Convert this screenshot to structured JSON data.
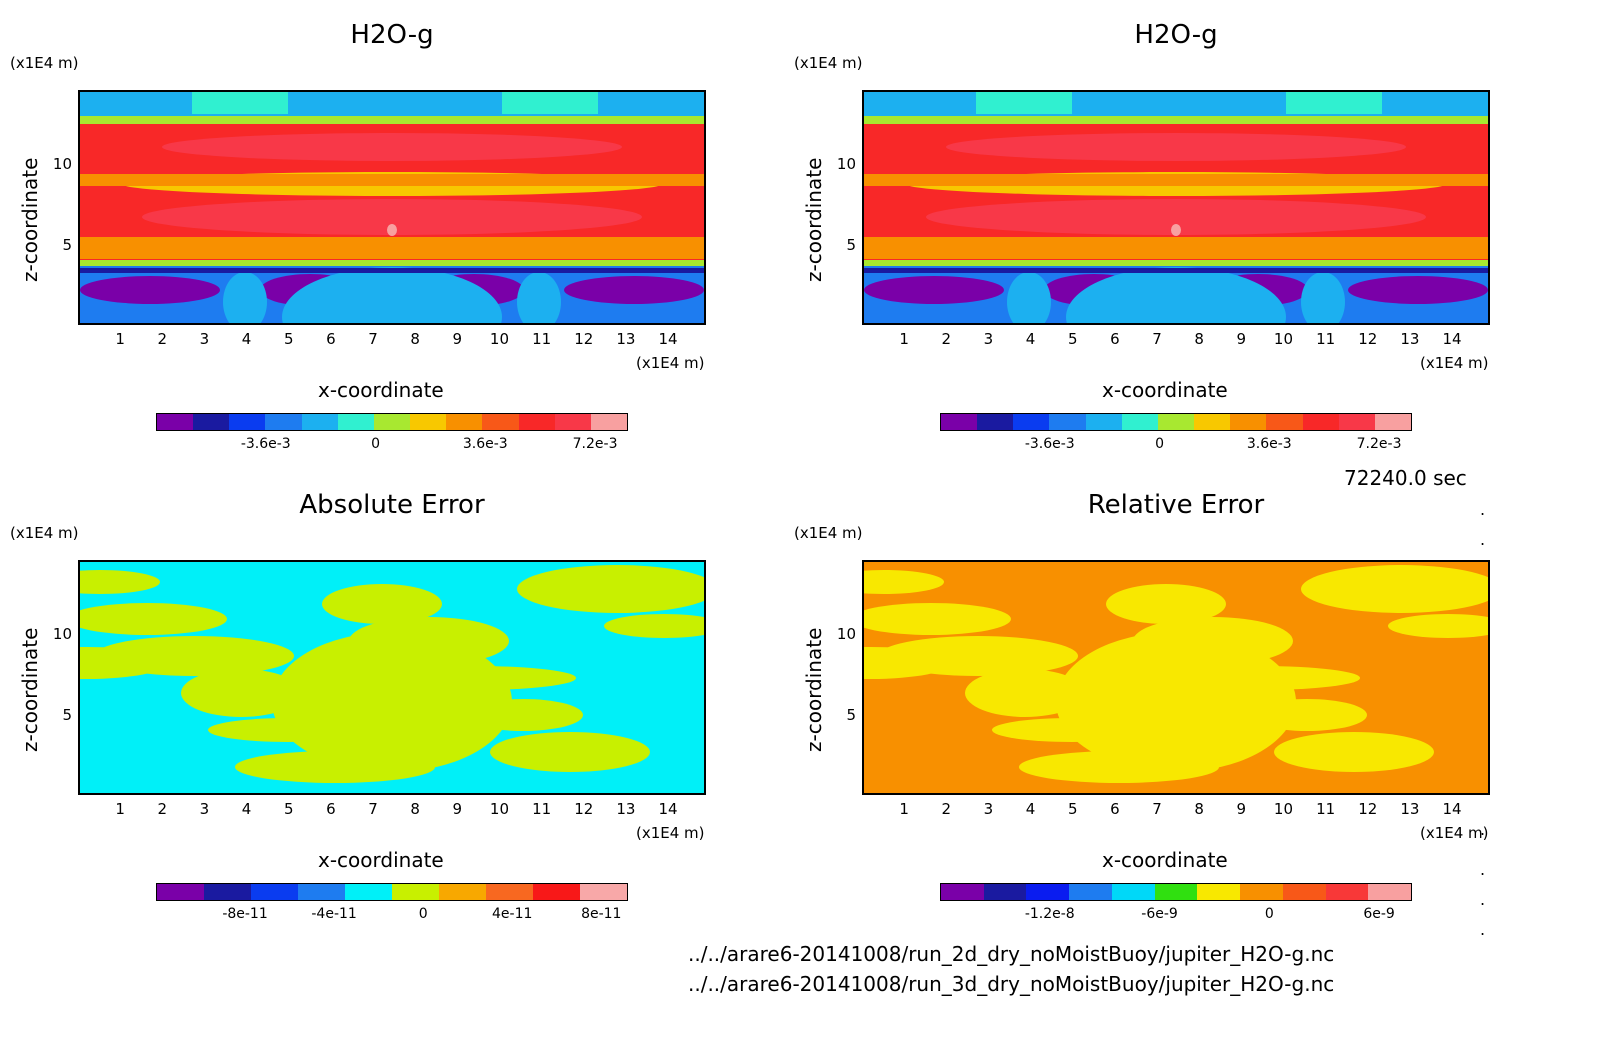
{
  "chart_data": [
    {
      "type": "heatmap",
      "title": "H2O-g",
      "xlabel": "x-coordinate",
      "ylabel": "z-coordinate",
      "x_unit": "(x1E4 m)",
      "y_unit": "(x1E4 m)",
      "xticks": [
        "1",
        "2",
        "3",
        "4",
        "5",
        "6",
        "7",
        "8",
        "9",
        "10",
        "11",
        "12",
        "13",
        "14"
      ],
      "yticks": [
        "5",
        "10"
      ],
      "colorbar": {
        "colors": [
          "#7a00a8",
          "#1a1aa0",
          "#0a3cf0",
          "#1e7cf0",
          "#1cb0f0",
          "#30f0d0",
          "#a8e830",
          "#f8c800",
          "#f89000",
          "#f85818",
          "#f82828",
          "#f83848",
          "#f8a0a0"
        ],
        "labels": [
          "-3.6e-3",
          "0",
          "3.6e-3",
          "7.2e-3"
        ]
      }
    },
    {
      "type": "heatmap",
      "title": "H2O-g",
      "xlabel": "x-coordinate",
      "ylabel": "z-coordinate",
      "x_unit": "(x1E4 m)",
      "y_unit": "(x1E4 m)",
      "xticks": [
        "1",
        "2",
        "3",
        "4",
        "5",
        "6",
        "7",
        "8",
        "9",
        "10",
        "11",
        "12",
        "13",
        "14"
      ],
      "yticks": [
        "5",
        "10"
      ],
      "colorbar": {
        "colors": [
          "#7a00a8",
          "#1a1aa0",
          "#0a3cf0",
          "#1e7cf0",
          "#1cb0f0",
          "#30f0d0",
          "#a8e830",
          "#f8c800",
          "#f89000",
          "#f85818",
          "#f82828",
          "#f83848",
          "#f8a0a0"
        ],
        "labels": [
          "-3.6e-3",
          "0",
          "3.6e-3",
          "7.2e-3"
        ]
      }
    },
    {
      "type": "heatmap",
      "title": "Absolute Error",
      "xlabel": "x-coordinate",
      "ylabel": "z-coordinate",
      "x_unit": "(x1E4 m)",
      "y_unit": "(x1E4 m)",
      "xticks": [
        "1",
        "2",
        "3",
        "4",
        "5",
        "6",
        "7",
        "8",
        "9",
        "10",
        "11",
        "12",
        "13",
        "14"
      ],
      "yticks": [
        "5",
        "10"
      ],
      "colorbar": {
        "colors": [
          "#7a00a8",
          "#1a1aa0",
          "#0a3cf0",
          "#1e7cf0",
          "#00f0f8",
          "#c8f000",
          "#f8a800",
          "#f86820",
          "#f81818",
          "#f8a8a8"
        ],
        "labels": [
          "-8e-11",
          "-4e-11",
          "0",
          "4e-11",
          "8e-11"
        ]
      }
    },
    {
      "type": "heatmap",
      "title": "Relative Error",
      "xlabel": "x-coordinate",
      "ylabel": "z-coordinate",
      "x_unit": "(x1E4 m)",
      "y_unit": "(x1E4 m)",
      "xticks": [
        "1",
        "2",
        "3",
        "4",
        "5",
        "6",
        "7",
        "8",
        "9",
        "10",
        "11",
        "12",
        "13",
        "14"
      ],
      "yticks": [
        "5",
        "10"
      ],
      "colorbar": {
        "colors": [
          "#7a00a8",
          "#1a1aa0",
          "#0a1cf0",
          "#1e7cf0",
          "#00d8f8",
          "#30e010",
          "#f8e800",
          "#f89000",
          "#f85818",
          "#f83838",
          "#f8a0a0"
        ],
        "labels": [
          "-1.2e-8",
          "-6e-9",
          "0",
          "6e-9"
        ]
      }
    }
  ],
  "footer": {
    "time": "72240.0 sec",
    "file1": "../../arare6-20141008/run_2d_dry_noMoistBuoy/jupiter_H2O-g.nc",
    "file2": "../../arare6-20141008/run_3d_dry_noMoistBuoy/jupiter_H2O-g.nc"
  }
}
